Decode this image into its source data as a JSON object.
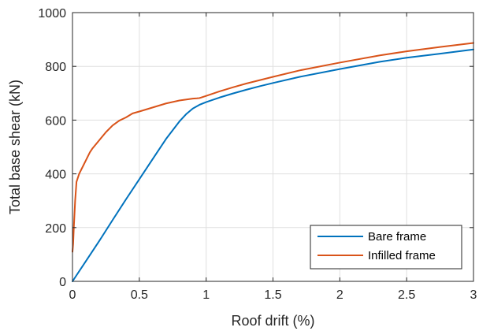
{
  "chart_data": {
    "type": "line",
    "title": "",
    "xlabel": "Roof drift (%)",
    "ylabel": "Total base shear (kN)",
    "xlim": [
      0,
      3
    ],
    "ylim": [
      0,
      1000
    ],
    "xticks": [
      0,
      0.5,
      1,
      1.5,
      2,
      2.5,
      3
    ],
    "yticks": [
      0,
      200,
      400,
      600,
      800,
      1000
    ],
    "xtick_labels": [
      "0",
      "0.5",
      "1",
      "1.5",
      "2",
      "2.5",
      "3"
    ],
    "ytick_labels": [
      "0",
      "200",
      "400",
      "600",
      "800",
      "1000"
    ],
    "grid": true,
    "legend_position": "bottom-right",
    "series": [
      {
        "name": "Bare frame",
        "color": "#0072BD",
        "x": [
          0,
          0.1,
          0.2,
          0.3,
          0.4,
          0.5,
          0.6,
          0.7,
          0.8,
          0.85,
          0.9,
          0.95,
          1.0,
          1.1,
          1.2,
          1.3,
          1.4,
          1.5,
          1.7,
          2.0,
          2.3,
          2.5,
          2.75,
          3.0
        ],
        "y": [
          0,
          75,
          150,
          228,
          305,
          380,
          455,
          530,
          595,
          622,
          643,
          657,
          667,
          684,
          699,
          713,
          726,
          738,
          761,
          790,
          817,
          832,
          847,
          863
        ]
      },
      {
        "name": "Infilled frame",
        "color": "#D95319",
        "x": [
          0,
          0.005,
          0.01,
          0.02,
          0.03,
          0.05,
          0.08,
          0.1,
          0.13,
          0.15,
          0.2,
          0.25,
          0.3,
          0.35,
          0.4,
          0.45,
          0.5,
          0.6,
          0.7,
          0.8,
          0.9,
          0.93,
          0.95,
          1.0,
          1.1,
          1.2,
          1.3,
          1.5,
          1.7,
          2.0,
          2.3,
          2.5,
          2.75,
          3.0
        ],
        "y": [
          110,
          140,
          200,
          300,
          370,
          400,
          430,
          450,
          480,
          495,
          525,
          555,
          580,
          598,
          610,
          625,
          632,
          647,
          662,
          673,
          680,
          681,
          682,
          690,
          707,
          722,
          736,
          761,
          785,
          814,
          841,
          856,
          872,
          887
        ]
      }
    ]
  }
}
